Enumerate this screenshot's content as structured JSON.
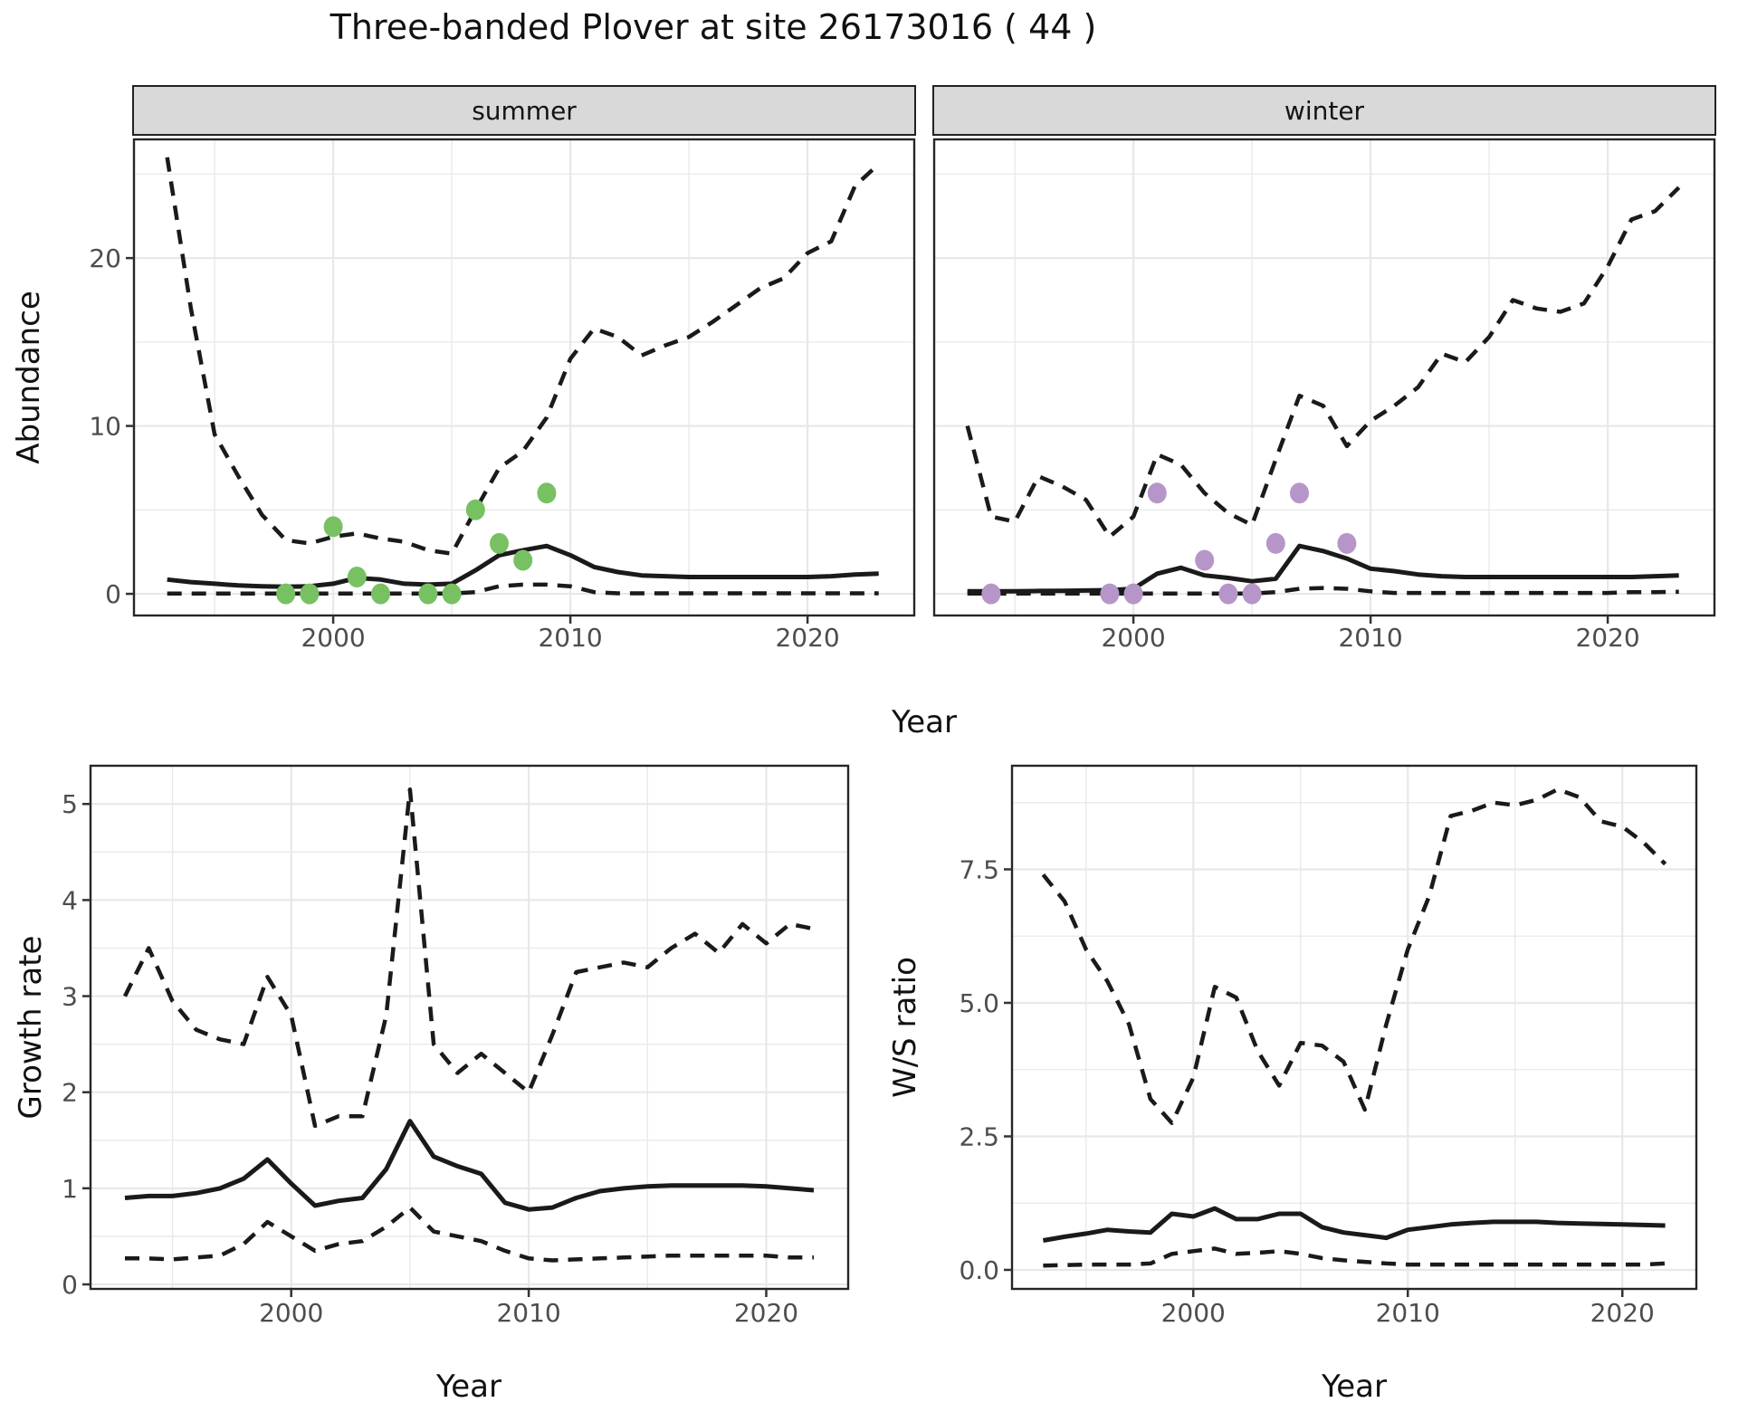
{
  "title": "Three-banded Plover at site 26173016 ( 44 )",
  "facets": {
    "summer": "summer",
    "winter": "winter"
  },
  "axis": {
    "abundance": "Abundance",
    "year": "Year",
    "growth": "Growth rate",
    "ws": "W/S ratio"
  },
  "colors": {
    "summer_dot": "#77C163",
    "winter_dot": "#B696C8",
    "line": "#1a1a1a",
    "grid": "#E8E8E8",
    "strip_bg": "#D9D9D9",
    "tick_text": "#4D4D4D",
    "panel_border": "#262626"
  },
  "chart_data": [
    {
      "id": "summer",
      "type": "line",
      "facet_label": "summer",
      "xlabel": "Year",
      "ylabel": "Abundance",
      "xlim": [
        1991.6,
        2024.5
      ],
      "ylim": [
        -1.29,
        27.07
      ],
      "x_ticks": [
        2000,
        2010,
        2020
      ],
      "x_tick_labels": [
        "2000",
        "2010",
        "2020"
      ],
      "y_ticks": [
        0,
        10,
        20
      ],
      "y_tick_labels": [
        "0",
        "10",
        "20"
      ],
      "grid": true,
      "x": [
        1993,
        1994,
        1995,
        1996,
        1997,
        1998,
        1999,
        2000,
        2001,
        2002,
        2003,
        2004,
        2005,
        2006,
        2007,
        2008,
        2009,
        2010,
        2011,
        2012,
        2013,
        2014,
        2015,
        2016,
        2017,
        2018,
        2019,
        2020,
        2021,
        2022,
        2023
      ],
      "series": [
        {
          "name": "upper 95% CI",
          "style": "dashed",
          "values": [
            26.0,
            17.0,
            9.5,
            7.0,
            4.7,
            3.2,
            3.0,
            3.4,
            3.6,
            3.3,
            3.1,
            2.6,
            2.4,
            5.0,
            7.5,
            8.5,
            10.5,
            14.0,
            15.8,
            15.3,
            14.2,
            14.8,
            15.3,
            16.2,
            17.2,
            18.2,
            18.8,
            20.3,
            21.0,
            24.3,
            25.6
          ]
        },
        {
          "name": "median",
          "style": "solid",
          "values": [
            0.85,
            0.7,
            0.6,
            0.5,
            0.45,
            0.42,
            0.45,
            0.6,
            0.95,
            0.85,
            0.6,
            0.55,
            0.6,
            1.4,
            2.3,
            2.6,
            2.85,
            2.3,
            1.6,
            1.3,
            1.1,
            1.05,
            1.0,
            1.0,
            1.0,
            1.0,
            1.0,
            1.0,
            1.05,
            1.15,
            1.2
          ]
        },
        {
          "name": "lower 95% CI",
          "style": "dashed",
          "values": [
            0.02,
            0.02,
            0.02,
            0.02,
            0.02,
            0.02,
            0.02,
            0.02,
            0.02,
            0.02,
            0.02,
            0.02,
            0.02,
            0.1,
            0.45,
            0.55,
            0.55,
            0.45,
            0.1,
            0.03,
            0.03,
            0.03,
            0.03,
            0.03,
            0.03,
            0.03,
            0.03,
            0.03,
            0.03,
            0.03,
            0.03
          ]
        }
      ],
      "points": {
        "name": "observed counts (summer)",
        "color": "#77C163",
        "xy": [
          [
            1998,
            0
          ],
          [
            1999,
            0
          ],
          [
            2000,
            4
          ],
          [
            2001,
            1
          ],
          [
            2002,
            0
          ],
          [
            2004,
            0
          ],
          [
            2005,
            0
          ],
          [
            2006,
            5
          ],
          [
            2007,
            3
          ],
          [
            2008,
            2
          ],
          [
            2009,
            6
          ]
        ]
      }
    },
    {
      "id": "winter",
      "type": "line",
      "facet_label": "winter",
      "xlabel": "Year",
      "ylabel": "Abundance",
      "xlim": [
        1991.6,
        2024.5
      ],
      "ylim": [
        -1.29,
        27.07
      ],
      "x_ticks": [
        2000,
        2010,
        2020
      ],
      "x_tick_labels": [
        "2000",
        "2010",
        "2020"
      ],
      "y_ticks": [
        0,
        10,
        20
      ],
      "y_tick_labels": [],
      "grid": true,
      "x": [
        1993,
        1994,
        1995,
        1996,
        1997,
        1998,
        1999,
        2000,
        2001,
        2002,
        2003,
        2004,
        2005,
        2006,
        2007,
        2008,
        2009,
        2010,
        2011,
        2012,
        2013,
        2014,
        2015,
        2016,
        2017,
        2018,
        2019,
        2020,
        2021,
        2022,
        2023
      ],
      "series": [
        {
          "name": "upper 95% CI",
          "style": "dashed",
          "values": [
            10.0,
            4.6,
            4.3,
            7.0,
            6.4,
            5.6,
            3.4,
            4.6,
            8.3,
            7.7,
            6.0,
            4.8,
            4.1,
            8.0,
            11.8,
            11.2,
            8.8,
            10.3,
            11.2,
            12.3,
            14.3,
            13.8,
            15.3,
            17.5,
            17.0,
            16.8,
            17.3,
            19.5,
            22.3,
            22.8,
            24.2
          ]
        },
        {
          "name": "median",
          "style": "solid",
          "values": [
            0.15,
            0.15,
            0.15,
            0.17,
            0.18,
            0.2,
            0.22,
            0.3,
            1.2,
            1.55,
            1.1,
            0.95,
            0.75,
            0.9,
            2.85,
            2.55,
            2.1,
            1.5,
            1.35,
            1.15,
            1.05,
            1.0,
            1.0,
            1.0,
            1.0,
            1.0,
            1.0,
            1.0,
            1.0,
            1.05,
            1.1
          ]
        },
        {
          "name": "lower 95% CI",
          "style": "dashed",
          "values": [
            0.02,
            0.02,
            0.02,
            0.02,
            0.02,
            0.02,
            0.02,
            0.02,
            0.02,
            0.02,
            0.02,
            0.02,
            0.02,
            0.1,
            0.3,
            0.35,
            0.3,
            0.15,
            0.05,
            0.05,
            0.05,
            0.05,
            0.05,
            0.05,
            0.05,
            0.05,
            0.05,
            0.05,
            0.1,
            0.1,
            0.12
          ]
        }
      ],
      "points": {
        "name": "observed counts (winter)",
        "color": "#B696C8",
        "xy": [
          [
            1994,
            0
          ],
          [
            1999,
            0
          ],
          [
            2000,
            0
          ],
          [
            2001,
            6
          ],
          [
            2003,
            2
          ],
          [
            2004,
            0
          ],
          [
            2005,
            0
          ],
          [
            2006,
            3
          ],
          [
            2007,
            6
          ],
          [
            2009,
            3
          ]
        ]
      }
    },
    {
      "id": "growth",
      "type": "line",
      "facet_label": "",
      "xlabel": "Year",
      "ylabel": "Growth rate",
      "xlim": [
        1991.55,
        2023.45
      ],
      "ylim": [
        -0.047,
        5.398
      ],
      "x_ticks": [
        2000,
        2010,
        2020
      ],
      "x_tick_labels": [
        "2000",
        "2010",
        "2020"
      ],
      "y_ticks": [
        0,
        1,
        2,
        3,
        4,
        5
      ],
      "y_tick_labels": [
        "0",
        "1",
        "2",
        "3",
        "4",
        "5"
      ],
      "grid": true,
      "x": [
        1993,
        1994,
        1995,
        1996,
        1997,
        1998,
        1999,
        2000,
        2001,
        2002,
        2003,
        2004,
        2005,
        2006,
        2007,
        2008,
        2009,
        2010,
        2011,
        2012,
        2013,
        2014,
        2015,
        2016,
        2017,
        2018,
        2019,
        2020,
        2021,
        2022
      ],
      "series": [
        {
          "name": "upper 95% CI",
          "style": "dashed",
          "values": [
            3.0,
            3.5,
            2.95,
            2.65,
            2.55,
            2.5,
            3.2,
            2.8,
            1.65,
            1.75,
            1.75,
            2.8,
            5.15,
            2.5,
            2.2,
            2.4,
            2.2,
            2.0,
            2.6,
            3.25,
            3.3,
            3.35,
            3.3,
            3.5,
            3.65,
            3.45,
            3.75,
            3.55,
            3.75,
            3.7
          ]
        },
        {
          "name": "median",
          "style": "solid",
          "values": [
            0.9,
            0.92,
            0.92,
            0.95,
            1.0,
            1.1,
            1.3,
            1.05,
            0.82,
            0.87,
            0.9,
            1.2,
            1.7,
            1.33,
            1.23,
            1.15,
            0.85,
            0.78,
            0.8,
            0.9,
            0.97,
            1.0,
            1.02,
            1.03,
            1.03,
            1.03,
            1.03,
            1.02,
            1.0,
            0.98
          ]
        },
        {
          "name": "lower 95% CI",
          "style": "dashed",
          "values": [
            0.27,
            0.27,
            0.26,
            0.28,
            0.3,
            0.42,
            0.65,
            0.5,
            0.35,
            0.42,
            0.45,
            0.6,
            0.8,
            0.55,
            0.5,
            0.45,
            0.35,
            0.27,
            0.25,
            0.26,
            0.27,
            0.28,
            0.29,
            0.3,
            0.3,
            0.3,
            0.3,
            0.3,
            0.28,
            0.28
          ]
        }
      ],
      "points": null
    },
    {
      "id": "ws",
      "type": "line",
      "facet_label": "",
      "xlabel": "Year",
      "ylabel": "W/S ratio",
      "xlim": [
        1991.55,
        2023.45
      ],
      "ylim": [
        -0.356,
        9.44
      ],
      "x_ticks": [
        2000,
        2010,
        2020
      ],
      "x_tick_labels": [
        "2000",
        "2010",
        "2020"
      ],
      "y_ticks": [
        0,
        2.5,
        5,
        7.5
      ],
      "y_tick_labels": [
        "0.0",
        "2.5",
        "5.0",
        "7.5"
      ],
      "grid": true,
      "x": [
        1993,
        1994,
        1995,
        1996,
        1997,
        1998,
        1999,
        2000,
        2001,
        2002,
        2003,
        2004,
        2005,
        2006,
        2007,
        2008,
        2009,
        2010,
        2011,
        2012,
        2013,
        2014,
        2015,
        2016,
        2017,
        2018,
        2019,
        2020,
        2021,
        2022
      ],
      "series": [
        {
          "name": "upper 95% CI",
          "style": "dashed",
          "values": [
            7.4,
            6.9,
            6.0,
            5.4,
            4.6,
            3.2,
            2.75,
            3.6,
            5.3,
            5.1,
            4.1,
            3.45,
            4.25,
            4.2,
            3.9,
            3.0,
            4.6,
            6.0,
            7.0,
            8.5,
            8.6,
            8.75,
            8.7,
            8.8,
            9.0,
            8.85,
            8.4,
            8.3,
            8.0,
            7.6
          ]
        },
        {
          "name": "median",
          "style": "solid",
          "values": [
            0.55,
            0.62,
            0.68,
            0.75,
            0.72,
            0.7,
            1.05,
            1.0,
            1.15,
            0.95,
            0.95,
            1.05,
            1.05,
            0.8,
            0.7,
            0.65,
            0.6,
            0.75,
            0.8,
            0.85,
            0.88,
            0.9,
            0.9,
            0.9,
            0.88,
            0.87,
            0.86,
            0.85,
            0.84,
            0.83
          ]
        },
        {
          "name": "lower 95% CI",
          "style": "dashed",
          "values": [
            0.08,
            0.09,
            0.1,
            0.1,
            0.1,
            0.12,
            0.3,
            0.35,
            0.4,
            0.3,
            0.32,
            0.35,
            0.3,
            0.22,
            0.18,
            0.15,
            0.12,
            0.1,
            0.1,
            0.1,
            0.1,
            0.1,
            0.1,
            0.1,
            0.1,
            0.1,
            0.1,
            0.1,
            0.1,
            0.12
          ]
        }
      ],
      "points": null
    }
  ]
}
